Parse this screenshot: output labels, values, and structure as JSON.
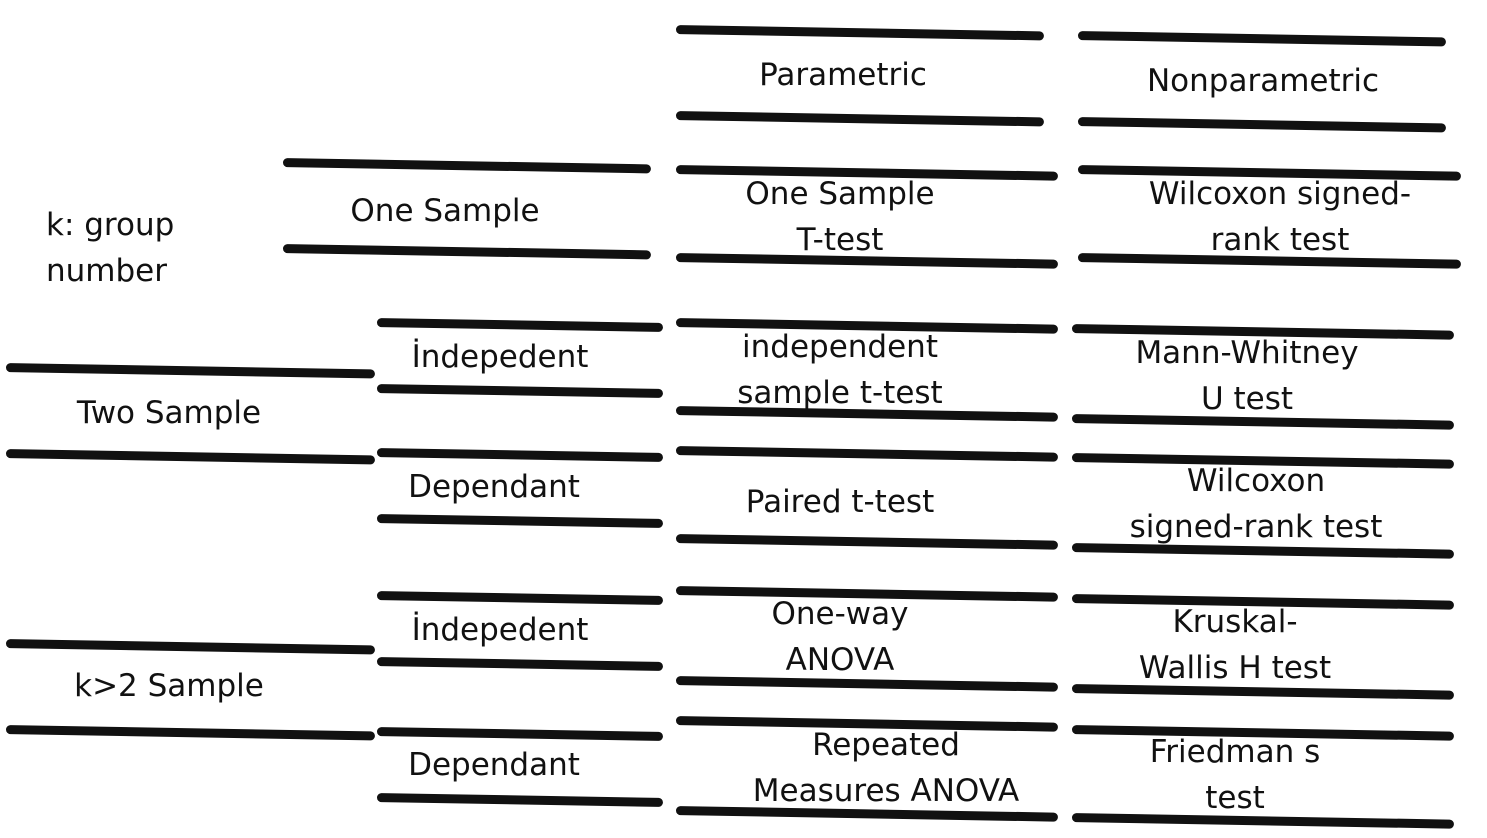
{
  "legend": {
    "line1": "k: group",
    "line2": "number"
  },
  "headers": {
    "parametric": "Parametric",
    "nonparametric": "Nonparametric"
  },
  "groups": {
    "one_sample": "One Sample",
    "two_sample": "Two Sample",
    "k2_sample": "k>2 Sample"
  },
  "subgroups": {
    "two_independent": "İndepedent",
    "two_dependent": "Dependant",
    "k2_independent": "İndepedent",
    "k2_dependent": "Dependant"
  },
  "tests": {
    "one_sample": {
      "parametric": {
        "line1": "One Sample",
        "line2": "T-test"
      },
      "nonparametric": {
        "line1": "Wilcoxon signed-",
        "line2": "rank test"
      }
    },
    "two_independent": {
      "parametric": {
        "line1": "independent",
        "line2": "sample t-test"
      },
      "nonparametric": {
        "line1": "Mann-Whitney",
        "line2": "U test"
      }
    },
    "two_dependent": {
      "parametric": {
        "line1": "Paired t-test"
      },
      "nonparametric": {
        "line1": "Wilcoxon",
        "line2": "signed-rank test"
      }
    },
    "k2_independent": {
      "parametric": {
        "line1": "One-way",
        "line2": "ANOVA"
      },
      "nonparametric": {
        "line1": "Kruskal-",
        "line2": "Wallis H test"
      }
    },
    "k2_dependent": {
      "parametric": {
        "line1": "Repeated",
        "line2": "Measures ANOVA"
      },
      "nonparametric": {
        "line1": "Friedman s",
        "line2": "test"
      }
    }
  }
}
